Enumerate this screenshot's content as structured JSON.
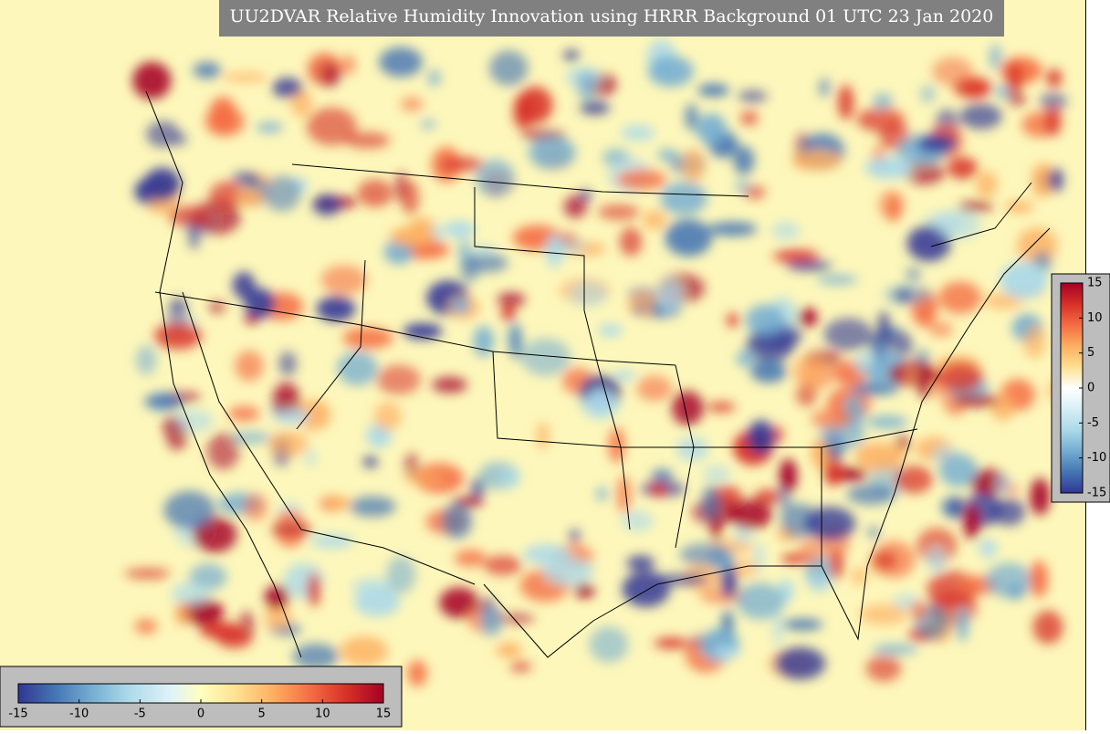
{
  "title": "UU2DVAR Relative Humidity Innovation using HRRR Background 01 UTC 23 Jan 2020",
  "horizontal_colorbar": {
    "ticks": [
      -15,
      -10,
      -5,
      0,
      5,
      10,
      15
    ]
  },
  "vertical_colorbar": {
    "ticks": [
      15,
      10,
      5,
      0,
      -5,
      -10,
      -15
    ]
  }
}
